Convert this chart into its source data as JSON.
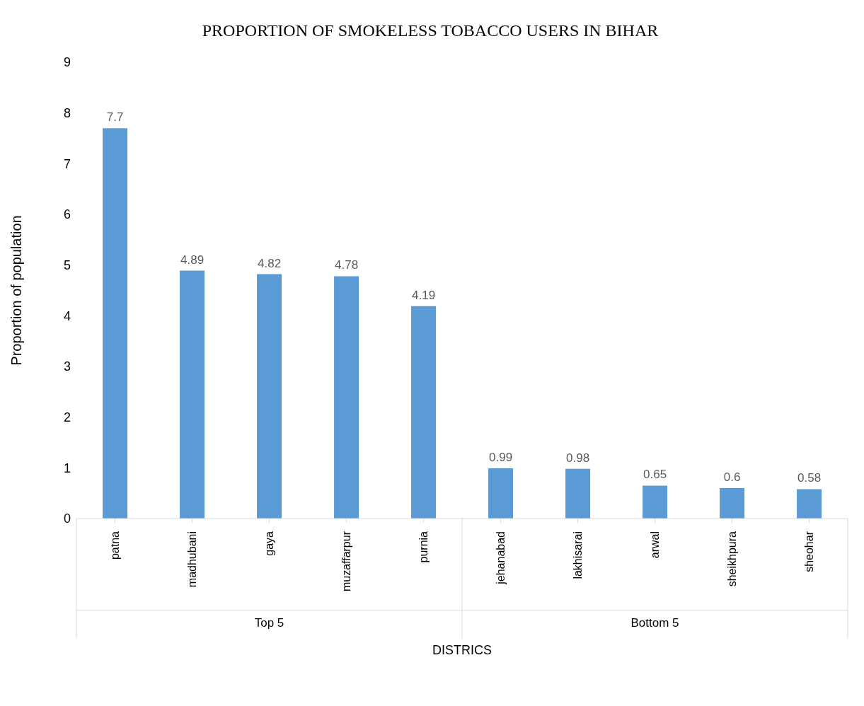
{
  "chart_data": {
    "type": "bar",
    "title": "PROPORTION OF SMOKELESS TOBACCO USERS IN BIHAR",
    "xlabel": "DISTRICS",
    "ylabel": "Proportion of population",
    "categories": [
      "patna",
      "madhubani",
      "gaya",
      "muzaffarpur",
      "purnia",
      "jehanabad",
      "lakhisarai",
      "arwal",
      "sheikhpura",
      "sheohar"
    ],
    "values": [
      7.7,
      4.89,
      4.82,
      4.78,
      4.19,
      0.99,
      0.98,
      0.65,
      0.6,
      0.58
    ],
    "color": "#5b9bd5",
    "ylim": [
      0,
      9
    ],
    "yticks": [
      0,
      1,
      2,
      3,
      4,
      5,
      6,
      7,
      8,
      9
    ],
    "grid": false,
    "data_labels": true,
    "annotations": [
      "Top 5",
      "Bottom 5"
    ]
  }
}
